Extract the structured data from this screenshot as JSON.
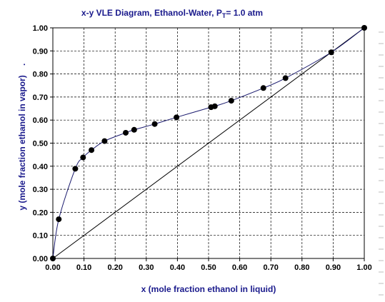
{
  "chart_data": {
    "type": "scatter",
    "title": {
      "prefix": "x-y VLE Diagram, Ethanol-Water, P",
      "sub": "T",
      "suffix": "= 1.0 atm"
    },
    "xlabel": "x (mole fraction ethanol in liquid)",
    "ylabel": "y (mole fraction ethanol in vapor)",
    "xlim": [
      0,
      1
    ],
    "ylim": [
      0,
      1
    ],
    "x_ticks": [
      "0.00",
      "0.10",
      "0.20",
      "0.30",
      "0.40",
      "0.50",
      "0.60",
      "0.70",
      "0.80",
      "0.90",
      "1.00"
    ],
    "y_ticks": [
      "0.00",
      "0.10",
      "0.20",
      "0.30",
      "0.40",
      "0.50",
      "0.60",
      "0.70",
      "0.80",
      "0.90",
      "1.00"
    ],
    "grid": true,
    "series": [
      {
        "kind": "points-with-curve",
        "color": "#1a1a6e",
        "points": [
          [
            0.0,
            0.0
          ],
          [
            0.019,
            0.17
          ],
          [
            0.072,
            0.389
          ],
          [
            0.097,
            0.438
          ],
          [
            0.124,
            0.47
          ],
          [
            0.166,
            0.509
          ],
          [
            0.234,
            0.545
          ],
          [
            0.261,
            0.558
          ],
          [
            0.327,
            0.583
          ],
          [
            0.397,
            0.612
          ],
          [
            0.508,
            0.656
          ],
          [
            0.52,
            0.66
          ],
          [
            0.573,
            0.684
          ],
          [
            0.676,
            0.739
          ],
          [
            0.747,
            0.782
          ],
          [
            0.894,
            0.894
          ],
          [
            1.0,
            1.0
          ]
        ]
      },
      {
        "kind": "diagonal",
        "color": "#000000",
        "points": [
          [
            0,
            0
          ],
          [
            1,
            1
          ]
        ]
      }
    ]
  }
}
